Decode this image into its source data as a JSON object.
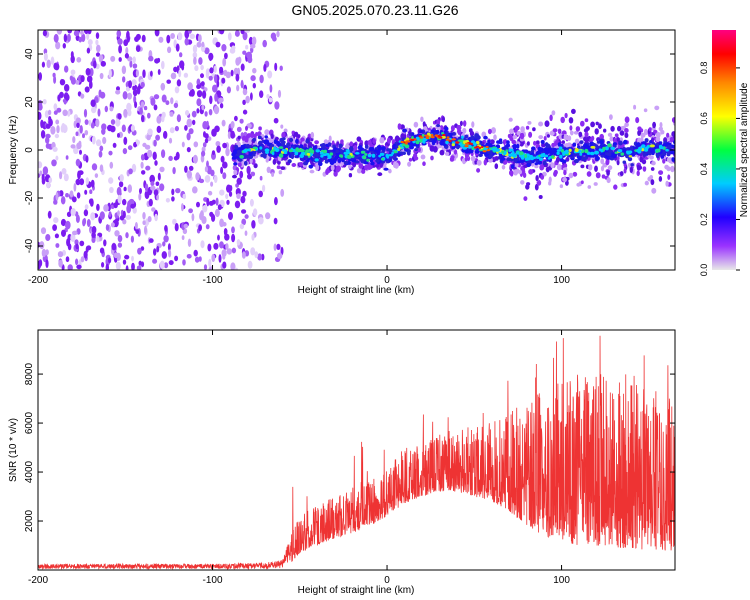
{
  "title": "GN05.2025.070.23.11.G26",
  "chart_data": [
    {
      "type": "heatmap",
      "xlabel": "Height of straight line (km)",
      "ylabel": "Frequency (Hz)",
      "xlim": [
        -200,
        165
      ],
      "ylim": [
        -50,
        50
      ],
      "x_ticks": [
        -200,
        -100,
        0,
        100
      ],
      "y_ticks": [
        -40,
        -20,
        0,
        20,
        40
      ],
      "noise_region_x": [
        -200,
        -60
      ],
      "signal_start_x": -88,
      "ridge_frequency": {
        "x": [
          -88,
          -80,
          -60,
          -40,
          -20,
          0,
          10,
          20,
          30,
          40,
          50,
          60,
          80,
          100,
          120,
          140,
          150,
          160,
          165
        ],
        "y": [
          -3,
          0,
          0,
          -2,
          -2,
          -3,
          3,
          5,
          6,
          3,
          2,
          0,
          -3,
          -1,
          0,
          -1,
          1,
          0,
          0
        ]
      },
      "grid": false,
      "colorbar": {
        "label": "Normalized spectral amplitude",
        "ticks": [
          0.0,
          0.2,
          0.4,
          0.6,
          0.8
        ],
        "range": [
          0,
          0.95
        ],
        "colors": [
          "#e8e8e8",
          "#7a00ff",
          "#0000ff",
          "#00ccff",
          "#00ff40",
          "#ffff00",
          "#ff8800",
          "#ff0000",
          "#ff0080"
        ]
      }
    },
    {
      "type": "line",
      "xlabel": "Height of straight line (km)",
      "ylabel": "SNR (10 * v/v)",
      "xlim": [
        -200,
        165
      ],
      "ylim": [
        0,
        9800
      ],
      "x_ticks": [
        -200,
        -100,
        0,
        100
      ],
      "y_ticks": [
        2000,
        4000,
        6000,
        8000
      ],
      "color": "#ee3333",
      "envelope": {
        "x": [
          -200,
          -150,
          -100,
          -70,
          -60,
          -55,
          -50,
          -40,
          -30,
          -20,
          -10,
          0,
          10,
          20,
          30,
          40,
          50,
          60,
          70,
          80,
          90,
          100,
          110,
          120,
          130,
          140,
          150,
          160,
          165
        ],
        "lower": [
          50,
          50,
          50,
          50,
          60,
          300,
          700,
          1000,
          1300,
          1500,
          1800,
          2200,
          2700,
          3000,
          3200,
          3200,
          3000,
          2800,
          2400,
          1800,
          1400,
          1200,
          1000,
          1000,
          900,
          900,
          800,
          800,
          800
        ],
        "upper": [
          250,
          250,
          250,
          300,
          400,
          1500,
          2400,
          2600,
          3000,
          3400,
          3800,
          4200,
          5000,
          5300,
          5600,
          5800,
          5900,
          6200,
          6600,
          7000,
          7500,
          7800,
          8000,
          8000,
          8200,
          8000,
          7600,
          7000,
          6800
        ]
      },
      "grid": false
    }
  ]
}
